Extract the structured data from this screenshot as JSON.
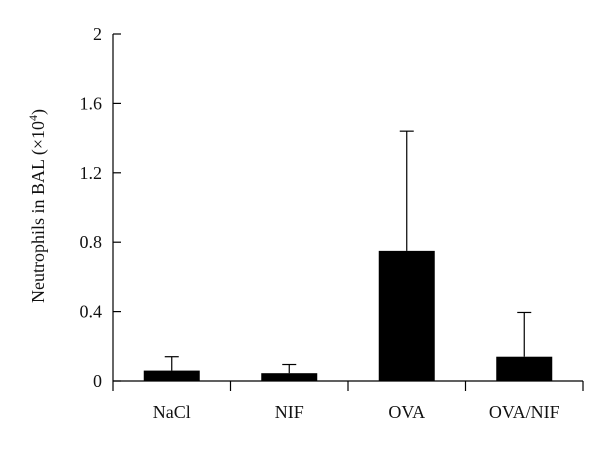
{
  "chart_data": {
    "type": "bar",
    "categories": [
      "NaCl",
      "NIF",
      "OVA",
      "OVA/NIF"
    ],
    "values": [
      0.06,
      0.045,
      0.75,
      0.14
    ],
    "error_upper": [
      0.14,
      0.095,
      1.44,
      0.395
    ],
    "ylabel": "Neutrophils in BAL (×10",
    "ylabel_superscript": "4",
    "ylabel_close": ")",
    "ylim": [
      0,
      2
    ],
    "yticks": [
      0,
      0.4,
      0.8,
      1.2,
      1.6,
      2
    ],
    "ytick_labels": [
      "0",
      "0.4",
      "0.8",
      "1.2",
      "1.6",
      "2"
    ],
    "grid": false,
    "bar_color": "#000000"
  }
}
